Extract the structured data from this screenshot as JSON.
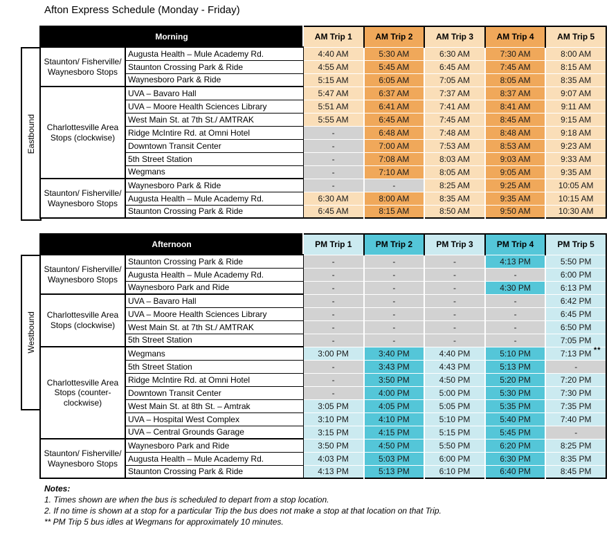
{
  "title": "Afton Express Schedule (Monday - Friday)",
  "footnote_marker": "**",
  "colors": {
    "am_light": "#FADEB8",
    "am_dark": "#F0A85A",
    "pm_light": "#CBEAF0",
    "pm_dark": "#54C6D8",
    "empty_cell": "#D2D2D2",
    "header_bg": "#000000",
    "header_text": "#FFFFFF"
  },
  "tables": [
    {
      "id": "morning",
      "direction": "Eastbound",
      "period_label": "Morning",
      "theme": "am",
      "trip_headers": [
        "AM Trip 1",
        "AM Trip 2",
        "AM Trip 3",
        "AM Trip 4",
        "AM Trip 5"
      ],
      "groups": [
        {
          "label": "Staunton/ Fisherville/ Waynesboro Stops",
          "rows": [
            {
              "stop": "Augusta Health – Mule Academy Rd.",
              "times": [
                "4:40 AM",
                "5:30 AM",
                "6:30 AM",
                "7:30 AM",
                "8:00 AM"
              ]
            },
            {
              "stop": "Staunton Crossing Park & Ride",
              "times": [
                "4:55 AM",
                "5:45 AM",
                "6:45 AM",
                "7:45 AM",
                "8:15 AM"
              ]
            },
            {
              "stop": "Waynesboro Park & Ride",
              "times": [
                "5:15 AM",
                "6:05 AM",
                "7:05 AM",
                "8:05 AM",
                "8:35 AM"
              ]
            }
          ]
        },
        {
          "label": "Charlottesville Area Stops (clockwise)",
          "rows": [
            {
              "stop": "UVA – Bavaro Hall",
              "times": [
                "5:47 AM",
                "6:37 AM",
                "7:37 AM",
                "8:37 AM",
                "9:07 AM"
              ]
            },
            {
              "stop": "UVA – Moore Health Sciences Library",
              "times": [
                "5:51 AM",
                "6:41 AM",
                "7:41 AM",
                "8:41 AM",
                "9:11 AM"
              ]
            },
            {
              "stop": "West Main St. at 7th St./ AMTRAK",
              "times": [
                "5:55 AM",
                "6:45 AM",
                "7:45 AM",
                "8:45 AM",
                "9:15 AM"
              ]
            },
            {
              "stop": "Ridge McIntire Rd. at Omni Hotel",
              "times": [
                "-",
                "6:48 AM",
                "7:48 AM",
                "8:48 AM",
                "9:18 AM"
              ]
            },
            {
              "stop": "Downtown Transit Center",
              "times": [
                "-",
                "7:00 AM",
                "7:53 AM",
                "8:53 AM",
                "9:23 AM"
              ]
            },
            {
              "stop": "5th Street Station",
              "times": [
                "-",
                "7:08 AM",
                "8:03 AM",
                "9:03 AM",
                "9:33 AM"
              ]
            },
            {
              "stop": "Wegmans",
              "times": [
                "-",
                "7:10 AM",
                "8:05 AM",
                "9:05 AM",
                "9:35 AM"
              ]
            }
          ]
        },
        {
          "label": "Staunton/ Fisherville/ Waynesboro Stops",
          "rows": [
            {
              "stop": "Waynesboro Park & Ride",
              "times": [
                "-",
                "-",
                "8:25 AM",
                "9:25 AM",
                "10:05 AM"
              ]
            },
            {
              "stop": "Augusta Health – Mule Academy Rd.",
              "times": [
                "6:30 AM",
                "8:00 AM",
                "8:35 AM",
                "9:35 AM",
                "10:15 AM"
              ]
            },
            {
              "stop": "Staunton Crossing Park & Ride",
              "times": [
                "6:45 AM",
                "8:15 AM",
                "8:50 AM",
                "9:50 AM",
                "10:30 AM"
              ]
            }
          ]
        }
      ]
    },
    {
      "id": "afternoon",
      "direction": "Westbound",
      "period_label": "Afternoon",
      "theme": "pm",
      "trip_headers": [
        "PM Trip 1",
        "PM Trip 2",
        "PM Trip 3",
        "PM Trip 4",
        "PM Trip 5"
      ],
      "groups": [
        {
          "label": "Staunton/ Fisherville/ Waynesboro Stops",
          "rows": [
            {
              "stop": "Staunton Crossing Park & Ride",
              "times": [
                "-",
                "-",
                "-",
                "4:13 PM",
                "5:50 PM"
              ]
            },
            {
              "stop": "Augusta Health – Mule Academy Rd.",
              "times": [
                "-",
                "-",
                "-",
                "-",
                "6:00 PM"
              ]
            },
            {
              "stop": "Waynesboro Park and Ride",
              "times": [
                "-",
                "-",
                "-",
                "4:30 PM",
                "6:13 PM"
              ]
            }
          ]
        },
        {
          "label": "Charlottesville Area Stops (clockwise)",
          "rows": [
            {
              "stop": "UVA – Bavaro Hall",
              "times": [
                "-",
                "-",
                "-",
                "-",
                "6:42 PM"
              ]
            },
            {
              "stop": "UVA – Moore Health Sciences Library",
              "times": [
                "-",
                "-",
                "-",
                "-",
                "6:45 PM"
              ]
            },
            {
              "stop": "West Main St. at 7th St./ AMTRAK",
              "times": [
                "-",
                "-",
                "-",
                "-",
                "6:50 PM"
              ]
            },
            {
              "stop": "5th Street Station",
              "times": [
                "-",
                "-",
                "-",
                "-",
                "7:05 PM"
              ]
            }
          ]
        },
        {
          "label": "Charlottesville Area Stops (counter-clockwise)",
          "rows": [
            {
              "stop": "Wegmans",
              "times": [
                "3:00 PM",
                "3:40 PM",
                "4:40 PM",
                "5:10 PM",
                "7:13 PM"
              ],
              "marker": "**"
            },
            {
              "stop": "5th Street Station",
              "times": [
                "-",
                "3:43 PM",
                "4:43 PM",
                "5:13 PM",
                "-"
              ]
            },
            {
              "stop": "Ridge McIntire Rd. at Omni Hotel",
              "times": [
                "-",
                "3:50 PM",
                "4:50 PM",
                "5:20 PM",
                "7:20 PM"
              ]
            },
            {
              "stop": "Downtown Transit Center",
              "times": [
                "-",
                "4:00 PM",
                "5:00 PM",
                "5:30 PM",
                "7:30 PM"
              ]
            },
            {
              "stop": "West Main St. at 8th St. – Amtrak",
              "times": [
                "3:05 PM",
                "4:05 PM",
                "5:05 PM",
                "5:35 PM",
                "7:35 PM"
              ]
            },
            {
              "stop": "UVA – Hospital West Complex",
              "times": [
                "3:10 PM",
                "4:10 PM",
                "5:10 PM",
                "5:40 PM",
                "7:40 PM"
              ]
            },
            {
              "stop": "UVA – Central Grounds Garage",
              "times": [
                "3:15 PM",
                "4:15 PM",
                "5:15 PM",
                "5:45 PM",
                "-"
              ]
            }
          ]
        },
        {
          "label": "Staunton/ Fisherville/ Waynesboro Stops",
          "rows": [
            {
              "stop": "Waynesboro Park and Ride",
              "times": [
                "3:50 PM",
                "4:50 PM",
                "5:50 PM",
                "6:20 PM",
                "8:25 PM"
              ]
            },
            {
              "stop": "Augusta Health – Mule Academy Rd.",
              "times": [
                "4:03 PM",
                "5:03 PM",
                "6:00 PM",
                "6:30 PM",
                "8:35 PM"
              ]
            },
            {
              "stop": "Staunton Crossing Park & Ride",
              "times": [
                "4:13 PM",
                "5:13 PM",
                "6:10 PM",
                "6:40 PM",
                "8:45 PM"
              ]
            }
          ]
        }
      ]
    }
  ],
  "notes": {
    "heading": "Notes:",
    "items": [
      "1. Times shown are when the bus is scheduled to depart from a stop location.",
      "2. If no time is shown at a stop for a particular Trip the bus does not make a stop at that location on that Trip.",
      "** PM Trip 5 bus idles at Wegmans for approximately 10 minutes."
    ]
  }
}
